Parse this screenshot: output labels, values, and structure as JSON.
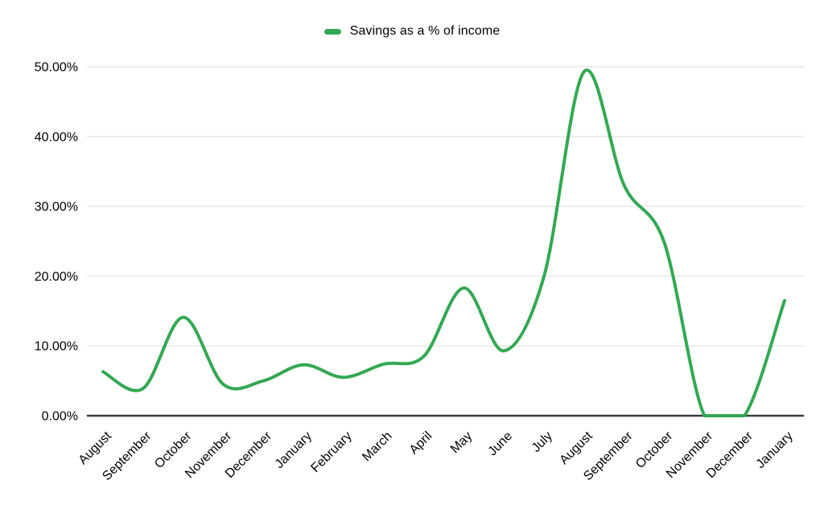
{
  "legend": {
    "label": "Savings as a % of income"
  },
  "chart_data": {
    "type": "line",
    "title": "",
    "xlabel": "",
    "ylabel": "",
    "smooth": true,
    "grid": true,
    "legend_position": "top",
    "categories": [
      "August",
      "September",
      "October",
      "November",
      "December",
      "January",
      "February",
      "March",
      "April",
      "May",
      "June",
      "July",
      "August",
      "September",
      "October",
      "November",
      "December",
      "January"
    ],
    "series": [
      {
        "name": "Savings as a % of income",
        "color": "#34a853",
        "values": [
          6.3,
          3.9,
          14.1,
          4.5,
          5.0,
          7.3,
          5.5,
          7.4,
          8.5,
          18.3,
          9.3,
          20.0,
          49.3,
          33.0,
          24.8,
          0.0,
          0.0,
          16.5
        ]
      }
    ],
    "y_axis": {
      "min": 0,
      "max": 50,
      "tick_step": 10,
      "tick_labels": [
        "0.00%",
        "10.00%",
        "20.00%",
        "30.00%",
        "40.00%",
        "50.00%"
      ]
    },
    "x_axis": {
      "label_rotation_deg": -45
    },
    "colors": {
      "line": "#34a853",
      "gridline": "#e6e6e6",
      "axis": "#3c3c3c",
      "text": "#000000",
      "background": "#ffffff"
    }
  }
}
